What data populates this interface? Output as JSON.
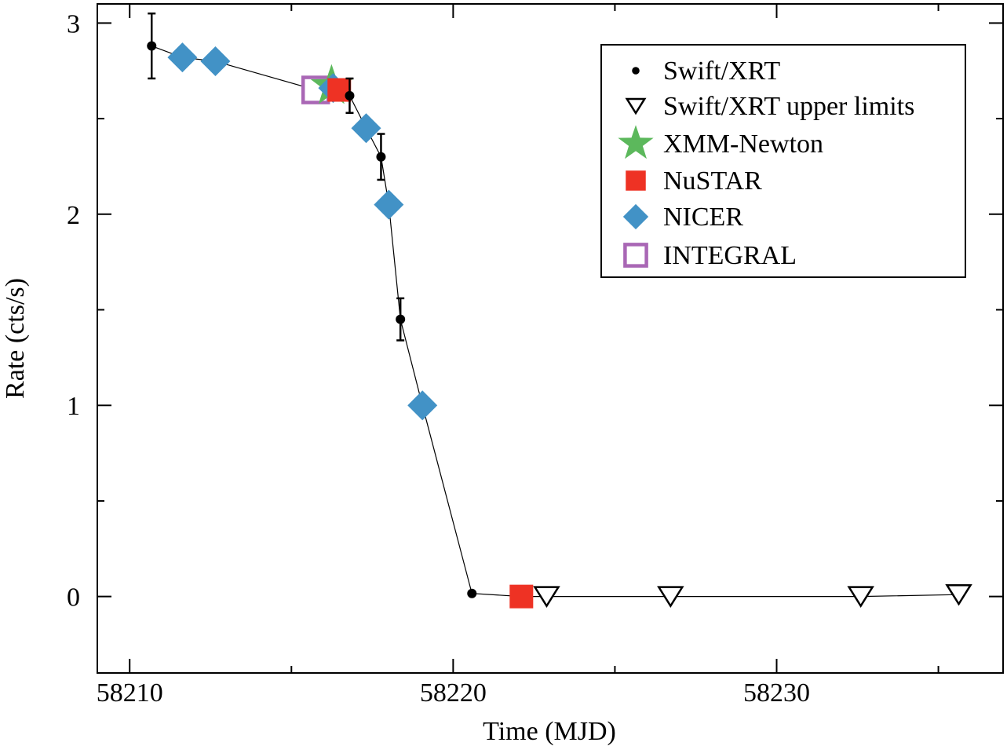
{
  "chart_data": {
    "type": "scatter",
    "xlabel": "Time (MJD)",
    "ylabel": "Rate (cts/s)",
    "xlim": [
      58209,
      58237
    ],
    "ylim": [
      -0.4,
      3.1
    ],
    "xticks": [
      58210,
      58220,
      58230
    ],
    "xtick_labels": [
      "58210",
      "58220",
      "58230"
    ],
    "x_minor_step": 5,
    "yticks": [
      0,
      1,
      2,
      3
    ],
    "ytick_labels": [
      "0",
      "1",
      "2",
      "3"
    ],
    "y_minor_step": 0.5,
    "grid": false,
    "legend_position": "top-right",
    "connecting_line": true,
    "series": [
      {
        "name": "Swift/XRT",
        "marker": "circle",
        "color": "#000000",
        "x": [
          58210.68,
          58216.8,
          58217.77,
          58218.37,
          58220.58
        ],
        "y": [
          2.88,
          2.62,
          2.3,
          1.45,
          0.016
        ],
        "yerr": [
          0.17,
          0.09,
          0.12,
          0.11,
          0.0
        ]
      },
      {
        "name": "Swift/XRT upper limits",
        "marker": "triangle-down-open",
        "color": "#000000",
        "x": [
          58222.89,
          58226.72,
          58232.6,
          58235.63
        ],
        "y": [
          0.0,
          0.0,
          0.0,
          0.01
        ]
      },
      {
        "name": "XMM-Newton",
        "marker": "star",
        "color": "#5cb85c",
        "x": [
          58216.24
        ],
        "y": [
          2.67
        ]
      },
      {
        "name": "NuSTAR",
        "marker": "square",
        "color": "#ee3224",
        "x": [
          58216.48,
          58222.11
        ],
        "y": [
          2.65,
          0.0
        ]
      },
      {
        "name": "NICER",
        "marker": "diamond",
        "color": "#4292c6",
        "x": [
          58211.63,
          58212.65,
          58216.29,
          58217.31,
          58218.01,
          58219.05
        ],
        "y": [
          2.82,
          2.8,
          2.66,
          2.45,
          2.05,
          1.0
        ]
      },
      {
        "name": "INTEGRAL",
        "marker": "square-open",
        "color": "#a967b5",
        "x": [
          58215.75
        ],
        "y": [
          2.65
        ]
      }
    ]
  }
}
